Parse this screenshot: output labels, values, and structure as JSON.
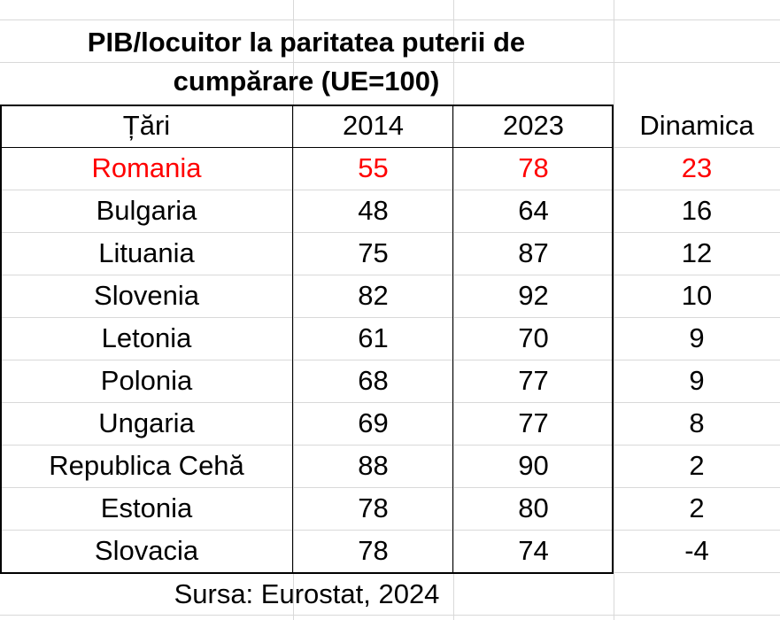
{
  "title_line1": "PIB/locuitor la paritatea puterii de",
  "title_line2": "cumpărare (UE=100)",
  "source": "Sursa: Eurostat, 2024",
  "highlight_color": "#ff0000",
  "chart_data": {
    "type": "table",
    "title": "PIB/locuitor la paritatea puterii de cumpărare (UE=100)",
    "columns": [
      "Țări",
      "2014",
      "2023",
      "Dinamica"
    ],
    "rows": [
      [
        "Romania",
        "55",
        "78",
        "23"
      ],
      [
        "Bulgaria",
        "48",
        "64",
        "16"
      ],
      [
        "Lituania",
        "75",
        "87",
        "12"
      ],
      [
        "Slovenia",
        "82",
        "92",
        "10"
      ],
      [
        "Letonia",
        "61",
        "70",
        "9"
      ],
      [
        "Polonia",
        "68",
        "77",
        "9"
      ],
      [
        "Ungaria",
        "69",
        "77",
        "8"
      ],
      [
        "Republica Cehă",
        "88",
        "90",
        "2"
      ],
      [
        "Estonia",
        "78",
        "80",
        "2"
      ],
      [
        "Slovacia",
        "78",
        "74",
        "-4"
      ]
    ],
    "highlighted_row": "Romania"
  }
}
